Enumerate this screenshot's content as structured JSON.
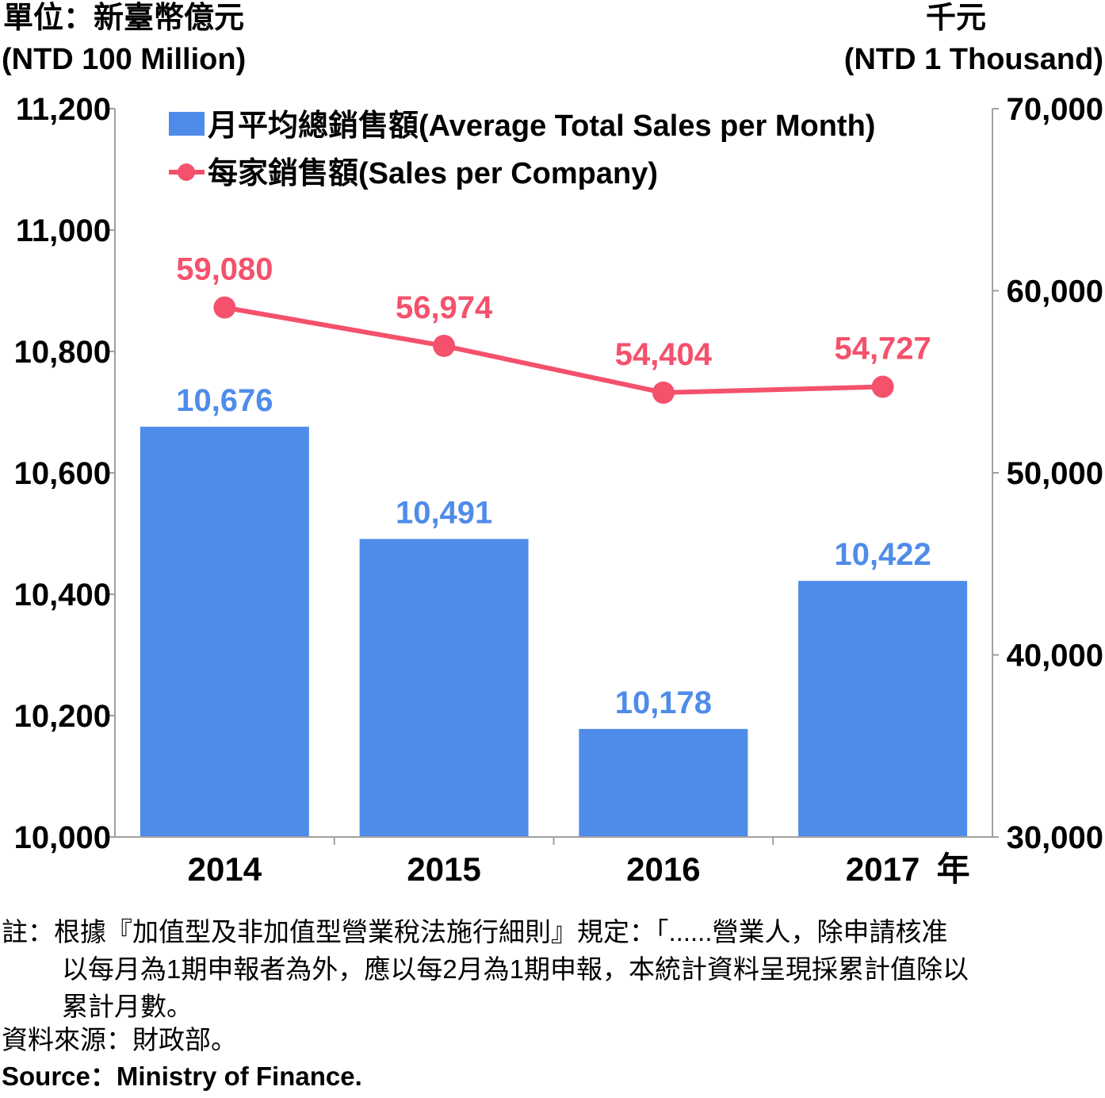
{
  "units": {
    "left_zh": "單位：新臺幣億元",
    "left_en": "(NTD 100 Million)",
    "right_zh": "千元",
    "right_en": "(NTD 1 Thousand)"
  },
  "chart_data": {
    "type": "bar",
    "categories": [
      "2014",
      "2015",
      "2016",
      "2017"
    ],
    "x_suffix": "年",
    "series": [
      {
        "name": "月平均總銷售額(Average Total Sales per Month)",
        "type": "bar",
        "axis": "left",
        "color": "#4f8cea",
        "values": [
          10676,
          10491,
          10178,
          10422
        ],
        "labels": [
          "10,676",
          "10,491",
          "10,178",
          "10,422"
        ]
      },
      {
        "name": "每家銷售額(Sales per Company)",
        "type": "line",
        "axis": "right",
        "color": "#f4516c",
        "values": [
          59080,
          56974,
          54404,
          54727
        ],
        "labels": [
          "59,080",
          "56,974",
          "54,404",
          "54,727"
        ]
      }
    ],
    "y_left": {
      "range": [
        10000,
        11200
      ],
      "ticks": [
        10000,
        10200,
        10400,
        10600,
        10800,
        11000,
        11200
      ],
      "tick_labels": [
        "10,000",
        "10,200",
        "10,400",
        "10,600",
        "10,800",
        "11,000",
        "11,200"
      ]
    },
    "y_right": {
      "range": [
        30000,
        70000
      ],
      "ticks": [
        30000,
        40000,
        50000,
        60000,
        70000
      ],
      "tick_labels": [
        "30,000",
        "40,000",
        "50,000",
        "60,000",
        "70,000"
      ]
    },
    "legend_position": "top"
  },
  "notes": {
    "line1": "註：根據『加值型及非加值型營業稅法施行細則』規定：「......營業人，除申請核准",
    "line2": "以每月為1期申報者為外，應以每2月為1期申報，本統計資料呈現採累計值除以",
    "line3": "累計月數。",
    "source_zh": "資料來源：財政部。",
    "source_en": "Source：Ministry of Finance."
  }
}
